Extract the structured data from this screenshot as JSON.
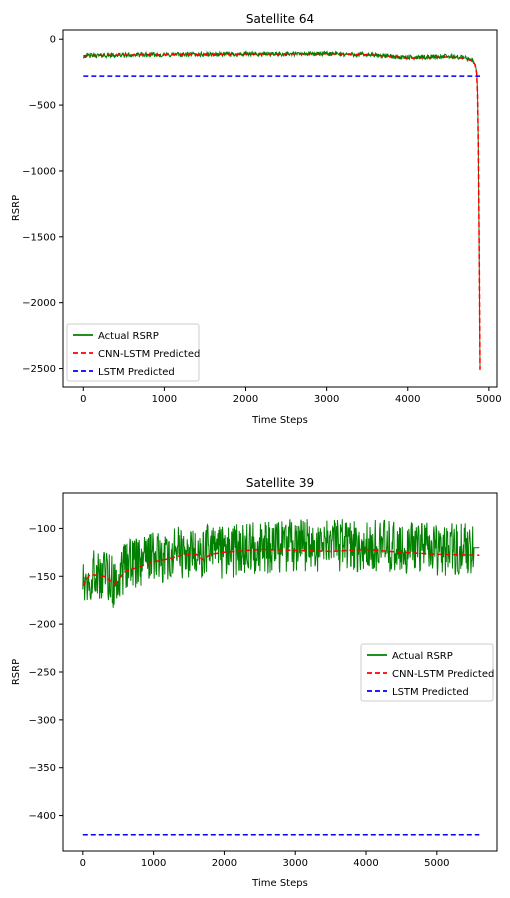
{
  "chart_data": [
    {
      "type": "line",
      "title": "Satellite 64",
      "xlabel": "Time Steps",
      "ylabel": "RSRP",
      "xlim": [
        -250,
        5100
      ],
      "ylim": [
        -2640,
        70
      ],
      "xticks": [
        0,
        1000,
        2000,
        3000,
        4000,
        5000
      ],
      "yticks": [
        0,
        -500,
        -1000,
        -1500,
        -2000,
        -2500
      ],
      "legend_position": "lower-left",
      "series": [
        {
          "name": "Actual RSRP",
          "color": "#008000",
          "style": "solid",
          "x": [
            0,
            500,
            1000,
            1500,
            2000,
            2500,
            3000,
            3500,
            3800,
            4000,
            4200,
            4500,
            4700,
            4800,
            4830,
            4850,
            4860,
            4870,
            4880,
            4890
          ],
          "y": [
            -125,
            -120,
            -118,
            -115,
            -113,
            -112,
            -110,
            -118,
            -130,
            -140,
            -135,
            -130,
            -140,
            -160,
            -190,
            -250,
            -400,
            -800,
            -1600,
            -2480
          ],
          "noise": 18
        },
        {
          "name": "CNN-LSTM Predicted",
          "color": "#ff0000",
          "style": "dashed",
          "x": [
            0,
            500,
            1000,
            1500,
            2000,
            2500,
            3000,
            3500,
            3800,
            4000,
            4200,
            4500,
            4700,
            4800,
            4830,
            4850,
            4860,
            4870,
            4880,
            4890
          ],
          "y": [
            -125,
            -120,
            -118,
            -115,
            -113,
            -112,
            -110,
            -118,
            -130,
            -145,
            -140,
            -135,
            -145,
            -165,
            -195,
            -260,
            -420,
            -820,
            -1620,
            -2510
          ]
        },
        {
          "name": "LSTM Predicted",
          "color": "#0000ff",
          "style": "dashed",
          "x": [
            0,
            4890
          ],
          "y": [
            -280,
            -280
          ]
        }
      ]
    },
    {
      "type": "line",
      "title": "Satellite 39",
      "xlabel": "Time Steps",
      "ylabel": "RSRP",
      "xlim": [
        -280,
        5850
      ],
      "ylim": [
        -437,
        -63
      ],
      "xticks": [
        0,
        1000,
        2000,
        3000,
        4000,
        5000
      ],
      "yticks": [
        -100,
        -150,
        -200,
        -250,
        -300,
        -350,
        -400
      ],
      "legend_position": "center-right",
      "series": [
        {
          "name": "Actual RSRP",
          "color": "#008000",
          "style": "solid",
          "x": [
            0,
            200,
            400,
            450,
            600,
            800,
            1000,
            1200,
            1400,
            1600,
            1800,
            2000,
            2500,
            3000,
            3500,
            4000,
            4500,
            5000,
            5600
          ],
          "y": [
            -150,
            -145,
            -148,
            -160,
            -140,
            -135,
            -130,
            -128,
            -125,
            -130,
            -122,
            -125,
            -120,
            -118,
            -118,
            -118,
            -120,
            -122,
            -120
          ],
          "noise": 28
        },
        {
          "name": "CNN-LSTM Predicted",
          "color": "#ff0000",
          "style": "dashed",
          "x": [
            0,
            100,
            300,
            450,
            600,
            800,
            1000,
            1200,
            1400,
            1600,
            1700,
            1800,
            2000,
            2500,
            3000,
            3500,
            4000,
            4500,
            5000,
            5600
          ],
          "y": [
            -160,
            -148,
            -150,
            -158,
            -145,
            -140,
            -135,
            -132,
            -128,
            -127,
            -133,
            -127,
            -125,
            -122,
            -123,
            -124,
            -122,
            -125,
            -127,
            -128
          ]
        },
        {
          "name": "LSTM Predicted",
          "color": "#0000ff",
          "style": "dashed",
          "x": [
            0,
            5600
          ],
          "y": [
            -420,
            -420
          ]
        }
      ]
    }
  ]
}
